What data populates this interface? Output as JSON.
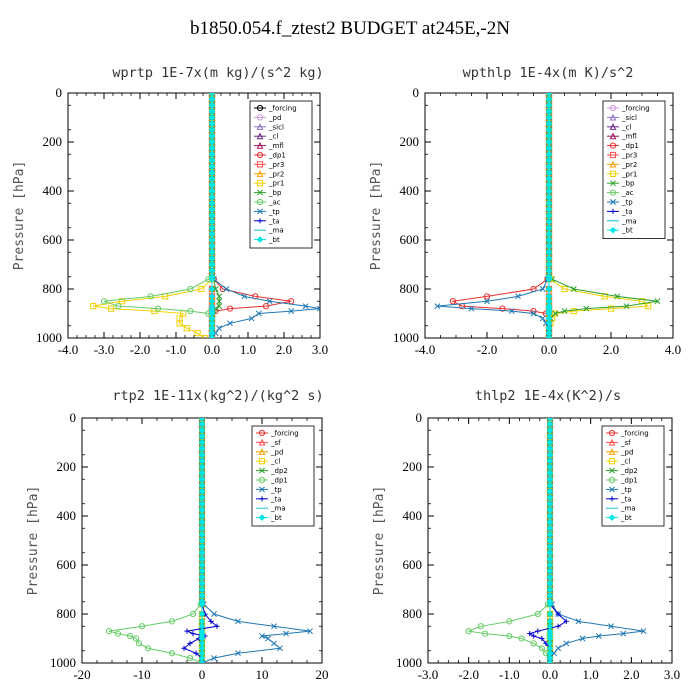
{
  "title": "b1850.054.f_ztest2  BUDGET at245E,-2N",
  "chart_data": [
    {
      "type": "line",
      "title": "wprtp  1E-7x(m kg)/(s^2 kg)",
      "ylabel": "Pressure [hPa]",
      "xlim": [
        -4.0,
        3.0
      ],
      "ylim": [
        1000,
        0
      ],
      "xticks": [
        "-4.0",
        "-3.0",
        "-2.0",
        "-1.0",
        "0.0",
        "1.0",
        "2.0",
        "3.0"
      ],
      "yticks": [
        "0",
        "200",
        "400",
        "600",
        "800",
        "1000"
      ],
      "legend_position": "top-right",
      "pressure": [
        760,
        800,
        830,
        850,
        870,
        880,
        890,
        900,
        920,
        940,
        960,
        980,
        1000
      ],
      "series": [
        {
          "name": "_forcing",
          "color": "#000000",
          "marker": "circle",
          "values": [
            0,
            0,
            0,
            0,
            0,
            0,
            0,
            0,
            0,
            0,
            0,
            0,
            0
          ]
        },
        {
          "name": "_pd",
          "color": "#c89bd8",
          "marker": "circle",
          "values": [
            0,
            0,
            0,
            0,
            0,
            0,
            0,
            0,
            0,
            0,
            0,
            0,
            0
          ]
        },
        {
          "name": "_sicl",
          "color": "#8a6fc9",
          "marker": "triangle",
          "values": [
            0,
            0,
            0,
            0,
            0,
            0,
            0,
            0,
            0,
            0,
            0,
            0,
            0
          ]
        },
        {
          "name": "_cl",
          "color": "#6b2a8a",
          "marker": "triangle",
          "values": [
            0,
            0,
            0,
            0,
            0,
            0,
            0,
            0,
            0,
            0,
            0,
            0,
            0
          ]
        },
        {
          "name": "_mfl",
          "color": "#a0145a",
          "marker": "triangle",
          "values": [
            0,
            0,
            0,
            0,
            0,
            0,
            0,
            0,
            0,
            0,
            0,
            0,
            0
          ]
        },
        {
          "name": "_dp1",
          "color": "#e83030",
          "marker": "circle",
          "values": [
            0.05,
            0.3,
            1.2,
            2.2,
            1.5,
            0.5,
            0.1,
            0,
            0,
            0,
            0,
            0,
            0
          ]
        },
        {
          "name": "_pr3",
          "color": "#ff4d4d",
          "marker": "square",
          "values": [
            0,
            0,
            0,
            0,
            0,
            0,
            0,
            0,
            0,
            0,
            0,
            0,
            0
          ]
        },
        {
          "name": "_pr2",
          "color": "#f0a000",
          "marker": "triangle",
          "values": [
            0,
            0,
            0,
            0,
            0,
            0,
            0,
            0,
            0,
            0,
            0,
            0,
            0
          ]
        },
        {
          "name": "_pr1",
          "color": "#f0d000",
          "marker": "square",
          "values": [
            0,
            -0.3,
            -1.3,
            -2.5,
            -3.3,
            -2.8,
            -1.6,
            -0.8,
            -0.9,
            -0.9,
            -0.7,
            -0.4,
            -0.2
          ]
        },
        {
          "name": "_bp",
          "color": "#2ca02c",
          "marker": "x",
          "values": [
            0.05,
            0.1,
            0.2,
            0.2,
            0.2,
            0.1,
            0.05,
            0,
            0,
            0,
            0,
            0,
            0
          ]
        },
        {
          "name": "_ac",
          "color": "#66cc66",
          "marker": "circle",
          "values": [
            -0.1,
            -0.6,
            -1.7,
            -3.0,
            -2.6,
            -1.5,
            -0.6,
            -0.1,
            0,
            0,
            0,
            0,
            0
          ]
        },
        {
          "name": "_tp",
          "color": "#1f77b4",
          "marker": "x",
          "values": [
            0.05,
            0.4,
            0.9,
            1.6,
            2.6,
            3.0,
            2.2,
            1.3,
            1.1,
            0.5,
            0.2,
            0.1,
            0
          ]
        },
        {
          "name": "_ta",
          "color": "#0000cc",
          "marker": "plus",
          "values": [
            0,
            0,
            0,
            0,
            0,
            0,
            0,
            0,
            0,
            0,
            0,
            0,
            0
          ]
        },
        {
          "name": "_ma",
          "color": "#17becf",
          "marker": "none",
          "values": [
            0,
            0,
            0,
            0,
            0,
            0,
            0,
            0,
            0,
            0,
            0,
            0,
            0
          ]
        },
        {
          "name": "_bt",
          "color": "#00e5e5",
          "marker": "diamond",
          "values": [
            0,
            0,
            0,
            0,
            0,
            0,
            0,
            0,
            0,
            0,
            0,
            0,
            0
          ]
        }
      ]
    },
    {
      "type": "line",
      "title": "wpthlp  1E-4x(m K)/s^2",
      "ylabel": "Pressure [hPa]",
      "xlim": [
        -4.0,
        4.0
      ],
      "ylim": [
        1000,
        0
      ],
      "xticks": [
        "-4.0",
        "-2.0",
        "0.0",
        "2.0",
        "4.0"
      ],
      "yticks": [
        "0",
        "200",
        "400",
        "600",
        "800",
        "1000"
      ],
      "legend_position": "top-right",
      "pressure": [
        760,
        800,
        830,
        850,
        870,
        880,
        890,
        900,
        920,
        940,
        960,
        980,
        1000
      ],
      "series": [
        {
          "name": "_forcing",
          "color": "#d399e0",
          "marker": "circle",
          "values": [
            0,
            0,
            0,
            0,
            0,
            0,
            0,
            0,
            0,
            0,
            0,
            0,
            0
          ]
        },
        {
          "name": "_sicl",
          "color": "#8a6fc9",
          "marker": "triangle",
          "values": [
            0,
            0,
            0,
            0,
            0,
            0,
            0,
            0,
            0,
            0,
            0,
            0,
            0
          ]
        },
        {
          "name": "_cl",
          "color": "#6b2a8a",
          "marker": "triangle",
          "values": [
            0,
            0,
            0,
            0,
            0,
            0,
            0,
            0,
            0,
            0,
            0,
            0,
            0
          ]
        },
        {
          "name": "_mfl",
          "color": "#a0145a",
          "marker": "triangle",
          "values": [
            0,
            0,
            0,
            0,
            0,
            0,
            0,
            0,
            0,
            0,
            0,
            0,
            0
          ]
        },
        {
          "name": "_dp1",
          "color": "#e83030",
          "marker": "circle",
          "values": [
            -0.05,
            -0.5,
            -2.0,
            -3.1,
            -2.8,
            -1.5,
            -0.5,
            -0.1,
            0,
            0,
            0,
            0,
            0
          ]
        },
        {
          "name": "_pr3",
          "color": "#ff4d4d",
          "marker": "square",
          "values": [
            0,
            0,
            0,
            0,
            0,
            0,
            0,
            0,
            0,
            0,
            0,
            0,
            0
          ]
        },
        {
          "name": "_pr2",
          "color": "#f0a000",
          "marker": "triangle",
          "values": [
            0,
            0,
            0,
            0,
            0,
            0,
            0,
            0,
            0,
            0,
            0,
            0,
            0
          ]
        },
        {
          "name": "_pr1",
          "color": "#f0d000",
          "marker": "square",
          "values": [
            0.05,
            0.5,
            1.8,
            3.0,
            3.2,
            2.0,
            0.8,
            0.2,
            0.1,
            0.05,
            0,
            0,
            0
          ]
        },
        {
          "name": "_bp",
          "color": "#2ca02c",
          "marker": "x",
          "values": [
            0.1,
            0.8,
            2.2,
            3.5,
            2.5,
            1.2,
            0.5,
            0.2,
            0.05,
            0,
            0,
            0,
            0
          ]
        },
        {
          "name": "_ac",
          "color": "#66cc66",
          "marker": "circle",
          "values": [
            0,
            0,
            0,
            0,
            0,
            0,
            0,
            0,
            0,
            0,
            0,
            0,
            0
          ]
        },
        {
          "name": "_tp",
          "color": "#1f77b4",
          "marker": "x",
          "values": [
            -0.05,
            -0.2,
            -1.0,
            -2.0,
            -3.6,
            -2.5,
            -1.2,
            -0.5,
            -0.2,
            -0.1,
            0,
            0,
            0
          ]
        },
        {
          "name": "_ta",
          "color": "#0000cc",
          "marker": "plus",
          "values": [
            0,
            0,
            0,
            0,
            0,
            0,
            0,
            0,
            0,
            0,
            0,
            0,
            0
          ]
        },
        {
          "name": "_ma",
          "color": "#17becf",
          "marker": "none",
          "values": [
            0,
            0,
            0,
            0,
            0,
            0,
            0,
            0,
            0,
            0,
            0,
            0,
            0
          ]
        },
        {
          "name": "_bt",
          "color": "#00e5e5",
          "marker": "diamond",
          "values": [
            0,
            0,
            0,
            0,
            0,
            0,
            0,
            0,
            0,
            0,
            0,
            0,
            0
          ]
        }
      ]
    },
    {
      "type": "line",
      "title": "rtp2  1E-11x(kg^2)/(kg^2 s)",
      "ylabel": "Pressure [hPa]",
      "xlim": [
        -20,
        20
      ],
      "ylim": [
        1000,
        0
      ],
      "xticks": [
        "-20",
        "-10",
        "0",
        "10",
        "20"
      ],
      "yticks": [
        "0",
        "200",
        "400",
        "600",
        "800",
        "1000"
      ],
      "legend_position": "top-right",
      "pressure": [
        760,
        800,
        830,
        850,
        870,
        880,
        890,
        900,
        920,
        940,
        960,
        980,
        1000
      ],
      "series": [
        {
          "name": "_forcing",
          "color": "#e83030",
          "marker": "circle",
          "values": [
            0,
            0,
            0,
            0,
            0,
            0,
            0,
            0,
            0,
            0,
            0,
            0,
            0
          ]
        },
        {
          "name": "_sf",
          "color": "#ff4d4d",
          "marker": "triangle",
          "values": [
            0,
            0,
            0,
            0,
            0,
            0,
            0,
            0,
            0,
            0,
            0,
            0,
            0
          ]
        },
        {
          "name": "_pd",
          "color": "#f0a000",
          "marker": "triangle",
          "values": [
            0,
            0,
            0,
            0,
            0,
            0,
            0,
            0,
            0,
            0,
            0,
            0,
            0
          ]
        },
        {
          "name": "_cl",
          "color": "#f0d000",
          "marker": "square",
          "values": [
            0,
            0,
            0,
            0,
            0,
            0,
            0,
            0,
            0,
            0,
            0,
            0,
            0
          ]
        },
        {
          "name": "_dp2",
          "color": "#2ca02c",
          "marker": "x",
          "values": [
            0,
            0,
            0,
            0,
            0,
            0,
            0,
            0,
            0,
            0,
            0,
            0,
            0
          ]
        },
        {
          "name": "_dp1",
          "color": "#66cc66",
          "marker": "circle",
          "values": [
            -0.2,
            -1.5,
            -5,
            -10,
            -15.5,
            -14,
            -12,
            -11,
            -10.5,
            -9,
            -5,
            -2,
            0
          ]
        },
        {
          "name": "_tp",
          "color": "#1f77b4",
          "marker": "x",
          "values": [
            0.3,
            2,
            6,
            12,
            18,
            14,
            10,
            11,
            12,
            13,
            6,
            2,
            0
          ]
        },
        {
          "name": "_ta",
          "color": "#0000cc",
          "marker": "plus",
          "values": [
            0,
            0.5,
            1.5,
            2.5,
            -2.5,
            -1.5,
            0.5,
            -0.5,
            -2,
            -3,
            -1,
            0,
            0
          ]
        },
        {
          "name": "_ma",
          "color": "#17becf",
          "marker": "none",
          "values": [
            0,
            0,
            0,
            0,
            0,
            0,
            0,
            0,
            0,
            0,
            0,
            0,
            0
          ]
        },
        {
          "name": "_bt",
          "color": "#00e5e5",
          "marker": "diamond",
          "values": [
            0,
            0,
            0,
            0,
            0,
            0,
            0,
            0,
            0,
            0,
            0,
            0,
            0
          ]
        }
      ]
    },
    {
      "type": "line",
      "title": "thlp2  1E-4x(K^2)/s",
      "ylabel": "Pressure [hPa]",
      "xlim": [
        -3.0,
        3.0
      ],
      "ylim": [
        1000,
        0
      ],
      "xticks": [
        "-3.0",
        "-2.0",
        "-1.0",
        "0.0",
        "1.0",
        "2.0",
        "3.0"
      ],
      "yticks": [
        "0",
        "200",
        "400",
        "600",
        "800",
        "1000"
      ],
      "legend_position": "top-right",
      "pressure": [
        760,
        800,
        830,
        850,
        870,
        880,
        890,
        900,
        920,
        940,
        960,
        980,
        1000
      ],
      "series": [
        {
          "name": "_forcing",
          "color": "#e83030",
          "marker": "circle",
          "values": [
            0,
            0,
            0,
            0,
            0,
            0,
            0,
            0,
            0,
            0,
            0,
            0,
            0
          ]
        },
        {
          "name": "_sf",
          "color": "#ff4d4d",
          "marker": "triangle",
          "values": [
            0,
            0,
            0,
            0,
            0,
            0,
            0,
            0,
            0,
            0,
            0,
            0,
            0
          ]
        },
        {
          "name": "_pd",
          "color": "#f0a000",
          "marker": "triangle",
          "values": [
            0,
            0,
            0,
            0,
            0,
            0,
            0,
            0,
            0,
            0,
            0,
            0,
            0
          ]
        },
        {
          "name": "_cl",
          "color": "#f0d000",
          "marker": "square",
          "values": [
            0,
            0,
            0,
            0,
            0,
            0,
            0,
            0,
            0,
            0,
            0,
            0,
            0
          ]
        },
        {
          "name": "_dp2",
          "color": "#2ca02c",
          "marker": "x",
          "values": [
            0,
            0,
            0,
            0,
            0,
            0,
            0,
            0,
            0,
            0,
            0,
            0,
            0
          ]
        },
        {
          "name": "_dp1",
          "color": "#66cc66",
          "marker": "circle",
          "values": [
            -0.05,
            -0.3,
            -1.0,
            -1.7,
            -2.0,
            -1.6,
            -1.0,
            -0.7,
            -0.4,
            -0.2,
            -0.1,
            0,
            0
          ]
        },
        {
          "name": "_tp",
          "color": "#1f77b4",
          "marker": "x",
          "values": [
            0.05,
            0.2,
            0.7,
            1.5,
            2.3,
            1.8,
            1.2,
            0.8,
            0.4,
            0.2,
            0.1,
            0,
            0
          ]
        },
        {
          "name": "_ta",
          "color": "#0000cc",
          "marker": "plus",
          "values": [
            0,
            0.2,
            0.4,
            0.2,
            -0.3,
            -0.5,
            -0.4,
            -0.2,
            -0.1,
            0,
            0,
            0,
            0
          ]
        },
        {
          "name": "_ma",
          "color": "#17becf",
          "marker": "none",
          "values": [
            0,
            0,
            0,
            0,
            0,
            0,
            0,
            0,
            0,
            0,
            0,
            0,
            0
          ]
        },
        {
          "name": "_bt",
          "color": "#00e5e5",
          "marker": "diamond",
          "values": [
            0,
            0,
            0,
            0,
            0,
            0,
            0,
            0,
            0,
            0,
            0,
            0,
            0
          ]
        }
      ]
    }
  ]
}
